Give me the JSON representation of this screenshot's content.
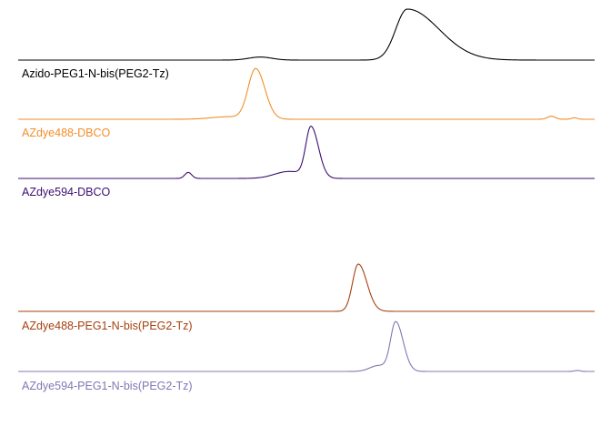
{
  "chart_data": {
    "type": "line",
    "grid": false,
    "legend": "none",
    "x_range": [
      0,
      100
    ],
    "series": [
      {
        "name": "Azido-PEG1-N-bis(PEG2-Tz)",
        "color": "#000000",
        "peaks": [
          {
            "x": 42,
            "height": 0.06,
            "width": 2.0
          },
          {
            "x": 67.5,
            "height": 1.0,
            "width": 2.0,
            "tail": 5.5
          }
        ]
      },
      {
        "name": "AZdye488-DBCO",
        "color": "#f28e2b",
        "peaks": [
          {
            "x": 36.5,
            "height": 0.05,
            "width": 3.0
          },
          {
            "x": 41.2,
            "height": 1.0,
            "width": 1.3,
            "tail": 1.6
          },
          {
            "x": 92.5,
            "height": 0.06,
            "width": 0.7
          },
          {
            "x": 96.5,
            "height": 0.03,
            "width": 0.5
          }
        ]
      },
      {
        "name": "AZdye594-DBCO",
        "color": "#3b0f70",
        "peaks": [
          {
            "x": 29.5,
            "height": 0.12,
            "width": 0.6
          },
          {
            "x": 47,
            "height": 0.14,
            "width": 2.5
          },
          {
            "x": 50.8,
            "height": 1.0,
            "width": 0.9,
            "tail": 1.3
          }
        ]
      },
      {
        "name": "AZdye488-PEG1-N-bis(PEG2-Tz)",
        "color": "#a6400f",
        "peaks": [
          {
            "x": 59,
            "height": 1.0,
            "width": 1.0,
            "tail": 1.5
          }
        ]
      },
      {
        "name": "AZdye594-PEG1-N-bis(PEG2-Tz)",
        "color": "#8078b4",
        "peaks": [
          {
            "x": 62.5,
            "height": 0.12,
            "width": 1.5
          },
          {
            "x": 65.5,
            "height": 1.0,
            "width": 0.9,
            "tail": 1.3
          },
          {
            "x": 97,
            "height": 0.02,
            "width": 0.5
          }
        ]
      }
    ]
  }
}
